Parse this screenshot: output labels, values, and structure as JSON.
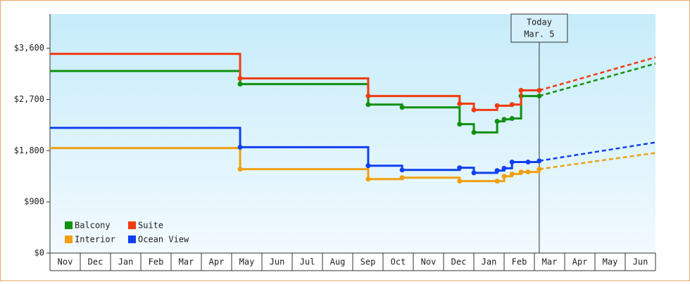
{
  "chart_data": {
    "type": "step-line",
    "xlim": [
      0,
      20
    ],
    "xticks": [
      {
        "value": 0.5,
        "label": "Nov"
      },
      {
        "value": 1.5,
        "label": "Dec"
      },
      {
        "value": 2.5,
        "label": "Jan"
      },
      {
        "value": 3.5,
        "label": "Feb"
      },
      {
        "value": 4.5,
        "label": "Mar"
      },
      {
        "value": 5.5,
        "label": "Apr"
      },
      {
        "value": 6.5,
        "label": "May"
      },
      {
        "value": 7.5,
        "label": "Jun"
      },
      {
        "value": 8.5,
        "label": "Jul"
      },
      {
        "value": 9.5,
        "label": "Aug"
      },
      {
        "value": 10.5,
        "label": "Sep"
      },
      {
        "value": 11.5,
        "label": "Oct"
      },
      {
        "value": 12.5,
        "label": "Nov"
      },
      {
        "value": 13.5,
        "label": "Dec"
      },
      {
        "value": 14.5,
        "label": "Jan"
      },
      {
        "value": 15.5,
        "label": "Feb"
      },
      {
        "value": 16.5,
        "label": "Mar"
      },
      {
        "value": 17.5,
        "label": "Apr"
      },
      {
        "value": 18.5,
        "label": "May"
      },
      {
        "value": 19.5,
        "label": "Jun"
      }
    ],
    "ylim": [
      0,
      4200
    ],
    "yticks": [
      {
        "value": 0,
        "label": "$0"
      },
      {
        "value": 900,
        "label": "$900"
      },
      {
        "value": 1800,
        "label": "$1,800"
      },
      {
        "value": 2700,
        "label": "$2,700"
      },
      {
        "value": 3600,
        "label": "$3,600"
      }
    ],
    "today": {
      "x": 16.16,
      "lines": [
        "Today",
        "Mar. 5"
      ]
    },
    "legend": "lower left",
    "series": [
      {
        "name": "Balcony",
        "color": "#109010",
        "x": [
          0,
          6.28,
          10.51,
          11.63,
          13.53,
          14.0,
          14.77,
          15.0,
          15.26,
          15.56,
          16.16
        ],
        "values": [
          3200,
          2970,
          2610,
          2560,
          2265,
          2120,
          2315,
          2350,
          2365,
          2760,
          2760
        ],
        "forecast_end": 3330
      },
      {
        "name": "Suite",
        "color": "#f03c10",
        "x": [
          0,
          6.28,
          10.51,
          13.53,
          14.0,
          14.77,
          15.26,
          15.56,
          16.16
        ],
        "values": [
          3500,
          3070,
          2760,
          2625,
          2515,
          2590,
          2610,
          2860,
          2860
        ],
        "forecast_end": 3440
      },
      {
        "name": "Interior",
        "color": "#f0a010",
        "x": [
          0,
          6.28,
          10.51,
          11.63,
          13.53,
          14.77,
          15.0,
          15.26,
          15.56,
          15.79,
          16.16
        ],
        "values": [
          1845,
          1475,
          1300,
          1325,
          1265,
          1265,
          1350,
          1390,
          1425,
          1425,
          1475
        ],
        "forecast_end": 1760
      },
      {
        "name": "Ocean View",
        "color": "#1040f0",
        "x": [
          0,
          6.28,
          10.51,
          11.63,
          13.53,
          14.0,
          14.77,
          15.0,
          15.26,
          15.79,
          16.16
        ],
        "values": [
          2200,
          1860,
          1535,
          1460,
          1500,
          1410,
          1450,
          1490,
          1600,
          1600,
          1620
        ],
        "forecast_end": 1945
      }
    ]
  }
}
